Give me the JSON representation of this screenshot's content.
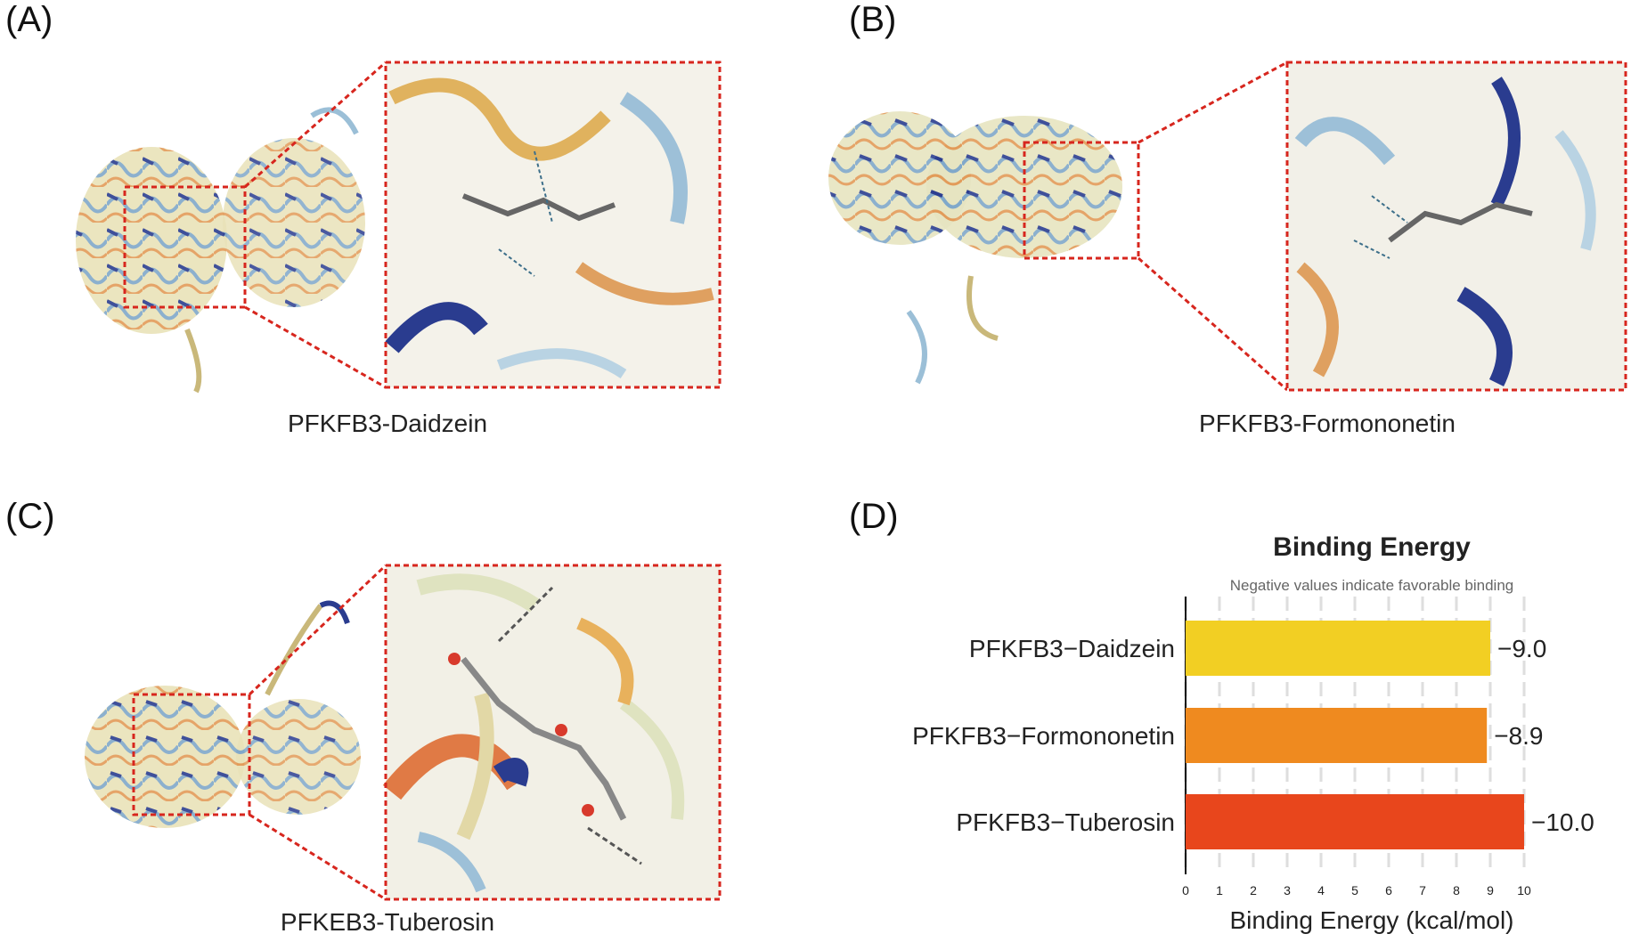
{
  "panels": {
    "a": {
      "letter": "(A)",
      "caption": "PFKFB3-Daidzein"
    },
    "b": {
      "letter": "(B)",
      "caption": "PFKFB3-Formononetin"
    },
    "c": {
      "letter": "(C)",
      "caption": "PFKEB3-Tuberosin"
    },
    "d": {
      "letter": "(D)"
    }
  },
  "colors": {
    "box": "#d7261e",
    "daidzein": "#f2cf23",
    "formononetin": "#ef8a1f",
    "tuberosin": "#e8461c"
  },
  "chart_data": {
    "type": "bar",
    "orientation": "horizontal",
    "title": "Binding Energy",
    "subtitle": "Negative values indicate favorable binding",
    "xlabel": "Binding Energy (kcal/mol)",
    "categories": [
      "PFKFB3−Daidzein",
      "PFKFB3−Formononetin",
      "PFKFB3−Tuberosin"
    ],
    "values": [
      9.0,
      8.9,
      10.0
    ],
    "value_labels": [
      "−9.0",
      "−8.9",
      "−10.0"
    ],
    "xlim": [
      0,
      10
    ],
    "xticks": [
      0,
      1,
      2,
      3,
      4,
      5,
      6,
      7,
      8,
      9,
      10
    ],
    "grid": true
  }
}
